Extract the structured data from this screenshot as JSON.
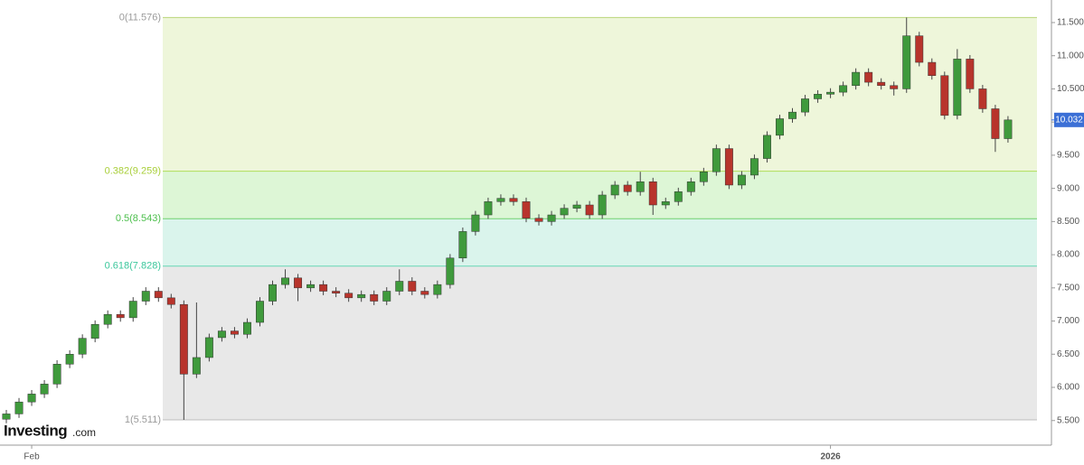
{
  "chart_data": {
    "type": "candlestick",
    "ylim": [
      5.17,
      11.84
    ],
    "yticks": [
      {
        "value": 5.5,
        "label": "5.500"
      },
      {
        "value": 6,
        "label": "6.000"
      },
      {
        "value": 6.5,
        "label": "6.500"
      },
      {
        "value": 7,
        "label": "7.000"
      },
      {
        "value": 7.5,
        "label": "7.500"
      },
      {
        "value": 8,
        "label": "8.000"
      },
      {
        "value": 8.5,
        "label": "8.500"
      },
      {
        "value": 9,
        "label": "9.000"
      },
      {
        "value": 9.5,
        "label": "9.500"
      },
      {
        "value": 10,
        "label": "10.000"
      },
      {
        "value": 10.5,
        "label": "10.500"
      },
      {
        "value": 11,
        "label": "11.000"
      },
      {
        "value": 11.5,
        "label": "11.500"
      }
    ],
    "categories": [
      null,
      null,
      "Feb",
      null,
      null,
      null,
      null,
      null,
      null,
      null,
      null,
      null,
      null,
      null,
      null,
      null,
      null,
      null,
      null,
      null,
      null,
      null,
      null,
      null,
      null,
      null,
      null,
      null,
      null,
      null,
      null,
      null,
      null,
      null,
      null,
      null,
      null,
      null,
      null,
      null,
      null,
      null,
      null,
      null,
      null,
      null,
      null,
      null,
      null,
      null,
      null,
      null,
      null,
      null,
      null,
      null,
      null,
      null,
      null,
      null,
      null,
      null,
      null,
      null,
      null,
      "2026",
      null,
      null,
      null,
      null,
      null,
      null,
      null,
      null,
      null,
      null,
      null,
      null,
      null,
      null
    ],
    "open": [
      5.52,
      5.6,
      5.78,
      5.9,
      6.05,
      6.35,
      6.5,
      6.74,
      6.95,
      7.1,
      7.05,
      7.3,
      7.45,
      7.35,
      7.25,
      6.2,
      6.45,
      6.75,
      6.85,
      6.8,
      6.98,
      7.3,
      7.55,
      7.65,
      7.5,
      7.55,
      7.45,
      7.42,
      7.35,
      7.4,
      7.3,
      7.45,
      7.6,
      7.45,
      7.4,
      7.55,
      7.95,
      8.35,
      8.6,
      8.8,
      8.85,
      8.8,
      8.55,
      8.5,
      8.6,
      8.7,
      8.75,
      8.6,
      8.9,
      9.05,
      8.95,
      9.1,
      8.75,
      8.8,
      8.95,
      9.1,
      9.25,
      9.6,
      9.05,
      9.2,
      9.45,
      9.8,
      10.05,
      10.15,
      10.35,
      10.42,
      10.45,
      10.55,
      10.75,
      10.6,
      10.55,
      10.5,
      11.3,
      10.9,
      10.7,
      10.1,
      10.95,
      10.5,
      10.2,
      9.75
    ],
    "high": [
      5.66,
      5.84,
      5.96,
      6.11,
      6.41,
      6.56,
      6.8,
      7.01,
      7.16,
      7.16,
      7.36,
      7.51,
      7.51,
      7.41,
      7.31,
      7.28,
      6.81,
      6.91,
      6.91,
      7.04,
      7.36,
      7.61,
      7.78,
      7.71,
      7.61,
      7.61,
      7.51,
      7.48,
      7.46,
      7.46,
      7.51,
      7.78,
      7.66,
      7.51,
      7.61,
      8.01,
      8.41,
      8.66,
      8.86,
      8.91,
      8.91,
      8.86,
      8.61,
      8.66,
      8.76,
      8.81,
      8.81,
      8.96,
      9.11,
      9.11,
      9.25,
      9.16,
      8.86,
      9.01,
      9.16,
      9.31,
      9.66,
      9.66,
      9.26,
      9.51,
      9.86,
      10.11,
      10.21,
      10.41,
      10.48,
      10.51,
      10.61,
      10.81,
      10.81,
      10.66,
      10.61,
      11.576,
      11.36,
      10.96,
      10.76,
      11.1,
      11.01,
      10.56,
      10.26,
      10.09
    ],
    "low": [
      5.46,
      5.54,
      5.72,
      5.84,
      5.99,
      6.29,
      6.44,
      6.68,
      6.89,
      6.99,
      6.99,
      7.24,
      7.29,
      7.19,
      5.511,
      6.14,
      6.39,
      6.69,
      6.74,
      6.74,
      6.92,
      7.24,
      7.49,
      7.3,
      7.44,
      7.39,
      7.36,
      7.29,
      7.29,
      7.24,
      7.24,
      7.39,
      7.39,
      7.34,
      7.34,
      7.49,
      7.89,
      8.29,
      8.54,
      8.74,
      8.74,
      8.49,
      8.44,
      8.44,
      8.54,
      8.64,
      8.54,
      8.54,
      8.84,
      8.89,
      8.89,
      8.6,
      8.69,
      8.74,
      8.89,
      9.04,
      9.19,
      8.99,
      8.99,
      9.14,
      9.39,
      9.74,
      9.99,
      10.09,
      10.29,
      10.36,
      10.39,
      10.49,
      10.54,
      10.49,
      10.4,
      10.44,
      10.84,
      10.64,
      10.04,
      10.04,
      10.44,
      10.14,
      9.55,
      9.69
    ],
    "close": [
      5.6,
      5.78,
      5.9,
      6.05,
      6.35,
      6.5,
      6.74,
      6.95,
      7.1,
      7.05,
      7.3,
      7.45,
      7.35,
      7.25,
      6.2,
      6.45,
      6.75,
      6.85,
      6.8,
      6.98,
      7.3,
      7.55,
      7.65,
      7.5,
      7.55,
      7.45,
      7.42,
      7.35,
      7.4,
      7.3,
      7.45,
      7.6,
      7.45,
      7.4,
      7.55,
      7.95,
      8.35,
      8.6,
      8.8,
      8.85,
      8.8,
      8.55,
      8.5,
      8.6,
      8.7,
      8.75,
      8.6,
      8.9,
      9.05,
      8.95,
      9.1,
      8.75,
      8.8,
      8.95,
      9.1,
      9.25,
      9.6,
      9.05,
      9.2,
      9.45,
      9.8,
      10.05,
      10.15,
      10.35,
      10.42,
      10.45,
      10.55,
      10.75,
      10.6,
      10.55,
      10.5,
      11.3,
      10.9,
      10.7,
      10.1,
      10.95,
      10.5,
      10.2,
      9.75,
      10.032
    ],
    "up_color": "#3f9a3c",
    "down_color": "#b8342c",
    "fib_levels": [
      {
        "label": "0(11.576)",
        "value": 11.576,
        "color": "#b9d67a",
        "text_color": "#9a9a9a",
        "fill": "#eef6da"
      },
      {
        "label": "0.382(9.259)",
        "value": 9.259,
        "color": "#b0de5a",
        "text_color": "#a9cf3a",
        "fill": "#ddf6d6"
      },
      {
        "label": "0.5(8.543)",
        "value": 8.543,
        "color": "#70d070",
        "text_color": "#4cbf4c",
        "fill": "#daf4ec"
      },
      {
        "label": "0.618(7.828)",
        "value": 7.828,
        "color": "#66d6b4",
        "text_color": "#3cc79c",
        "fill": "#e8e8e8"
      },
      {
        "label": "1(5.511)",
        "value": 5.511,
        "color": "#bdbdbd",
        "text_color": "#9a9a9a"
      }
    ],
    "last_price": 10.032,
    "last_price_color": "#3b6fd6",
    "logo": {
      "brand": "Investing",
      "suffix": ".com"
    }
  }
}
